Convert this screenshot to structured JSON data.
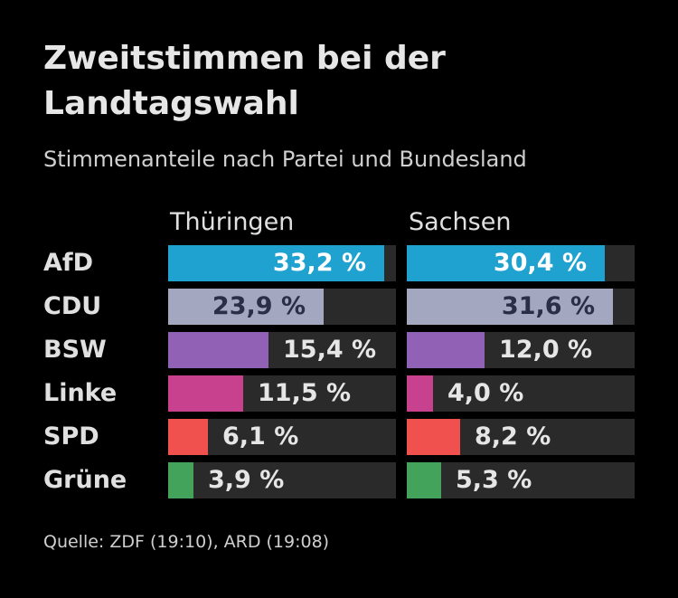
{
  "title": "Zweitstimmen bei der Landtagswahl",
  "subtitle": "Stimmenanteile nach Partei und Bundesland",
  "source": "Quelle: ZDF (19:10), ARD (19:08)",
  "chart_data": {
    "type": "bar",
    "orientation": "horizontal",
    "title": "Zweitstimmen bei der Landtagswahl",
    "subtitle": "Stimmenanteile nach Partei und Bundesland",
    "unit": "%",
    "xlim": [
      0,
      35
    ],
    "categories": [
      "AfD",
      "CDU",
      "BSW",
      "Linke",
      "SPD",
      "Grüne"
    ],
    "category_colors": [
      "#1fa2cf",
      "#a3a7bf",
      "#9061b5",
      "#c8418e",
      "#f0504e",
      "#43a35a"
    ],
    "series": [
      {
        "name": "Thüringen",
        "values": [
          33.2,
          23.9,
          15.4,
          11.5,
          6.1,
          3.9
        ],
        "labels": [
          "33,2 %",
          "23,9 %",
          "15,4 %",
          "11,5 %",
          "6,1 %",
          "3,9 %"
        ]
      },
      {
        "name": "Sachsen",
        "values": [
          30.4,
          31.6,
          12.0,
          4.0,
          8.2,
          5.3
        ],
        "labels": [
          "30,4 %",
          "31,6 %",
          "12,0 %",
          "4,0 %",
          "8,2 %",
          "5,3 %"
        ]
      }
    ]
  }
}
